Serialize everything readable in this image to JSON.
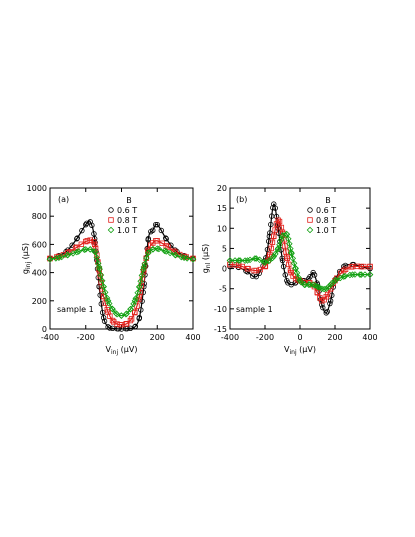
{
  "chart_data": [
    {
      "type": "scatter",
      "panel_label": "(a)",
      "annotation": "sample 1",
      "xlabel": "V",
      "xlabel_sub": "inj",
      "xlabel_unit": " (μV)",
      "ylabel": "g",
      "ylabel_sub": "inj",
      "ylabel_unit": " (μS)",
      "xlim": [
        -400,
        400
      ],
      "ylim": [
        0,
        1000
      ],
      "xticks": [
        -400,
        -200,
        0,
        200,
        400
      ],
      "yticks": [
        0,
        200,
        400,
        600,
        800,
        1000
      ],
      "legend_title": "B",
      "legend_position": "top-center",
      "x": [
        -400,
        -350,
        -300,
        -250,
        -200,
        -175,
        -150,
        -125,
        -100,
        -75,
        -50,
        -25,
        0,
        25,
        50,
        75,
        100,
        125,
        150,
        175,
        200,
        250,
        300,
        350,
        400
      ],
      "series": [
        {
          "name": "0.6 T",
          "color": "#000000",
          "marker": "circle",
          "values": [
            500,
            520,
            560,
            640,
            740,
            760,
            640,
            300,
            80,
            15,
            5,
            2,
            0,
            2,
            5,
            15,
            80,
            300,
            640,
            700,
            740,
            640,
            560,
            520,
            500
          ]
        },
        {
          "name": "0.8 T",
          "color": "#e0201b",
          "marker": "square",
          "values": [
            500,
            515,
            540,
            580,
            620,
            630,
            600,
            420,
            230,
            120,
            60,
            35,
            30,
            35,
            60,
            120,
            230,
            420,
            560,
            610,
            625,
            590,
            545,
            515,
            500
          ]
        },
        {
          "name": "1.0 T",
          "color": "#10a010",
          "marker": "diamond",
          "values": [
            495,
            505,
            525,
            545,
            565,
            565,
            550,
            440,
            300,
            200,
            140,
            105,
            95,
            105,
            140,
            200,
            300,
            440,
            540,
            565,
            570,
            550,
            525,
            505,
            495
          ]
        }
      ]
    },
    {
      "type": "scatter",
      "panel_label": "(b)",
      "annotation": "sample 1",
      "xlabel": "V",
      "xlabel_sub": "inj",
      "xlabel_unit": " (μV)",
      "ylabel": "g",
      "ylabel_sub": "nl",
      "ylabel_unit": " (μS)",
      "xlim": [
        -400,
        400
      ],
      "ylim": [
        -15,
        20
      ],
      "xticks": [
        -400,
        -200,
        0,
        200,
        400
      ],
      "yticks": [
        -15,
        -10,
        -5,
        0,
        5,
        10,
        15,
        20
      ],
      "legend_title": "B",
      "legend_position": "top-right",
      "x": [
        -400,
        -350,
        -300,
        -250,
        -200,
        -175,
        -150,
        -125,
        -100,
        -75,
        -50,
        -25,
        0,
        25,
        50,
        75,
        100,
        125,
        150,
        175,
        200,
        250,
        300,
        350,
        400
      ],
      "series": [
        {
          "name": "0.6 T",
          "color": "#000000",
          "marker": "circle",
          "values": [
            0.5,
            0.3,
            -0.8,
            -2,
            2,
            8,
            16,
            10,
            2,
            -3,
            -4,
            -3.5,
            -3,
            -3,
            -2.5,
            -1,
            -4,
            -9,
            -11,
            -8,
            -3,
            0.5,
            1,
            0.5,
            0
          ]
        },
        {
          "name": "0.8 T",
          "color": "#e0201b",
          "marker": "square",
          "values": [
            1,
            0.8,
            0,
            -0.5,
            0.5,
            3,
            8,
            12,
            9,
            3,
            -1,
            -2.5,
            -3,
            -3.5,
            -3.5,
            -4,
            -6,
            -8,
            -7,
            -5,
            -3,
            -0.5,
            0.5,
            0.5,
            0.5
          ]
        },
        {
          "name": "1.0 T",
          "color": "#10a010",
          "marker": "diamond",
          "values": [
            2,
            2,
            2,
            2.5,
            1.5,
            2,
            3,
            5,
            8,
            8.5,
            4,
            0,
            -3,
            -4,
            -4,
            -4,
            -4.5,
            -5,
            -5,
            -4,
            -3,
            -2,
            -1.5,
            -1.5,
            -1.5
          ]
        }
      ]
    }
  ]
}
